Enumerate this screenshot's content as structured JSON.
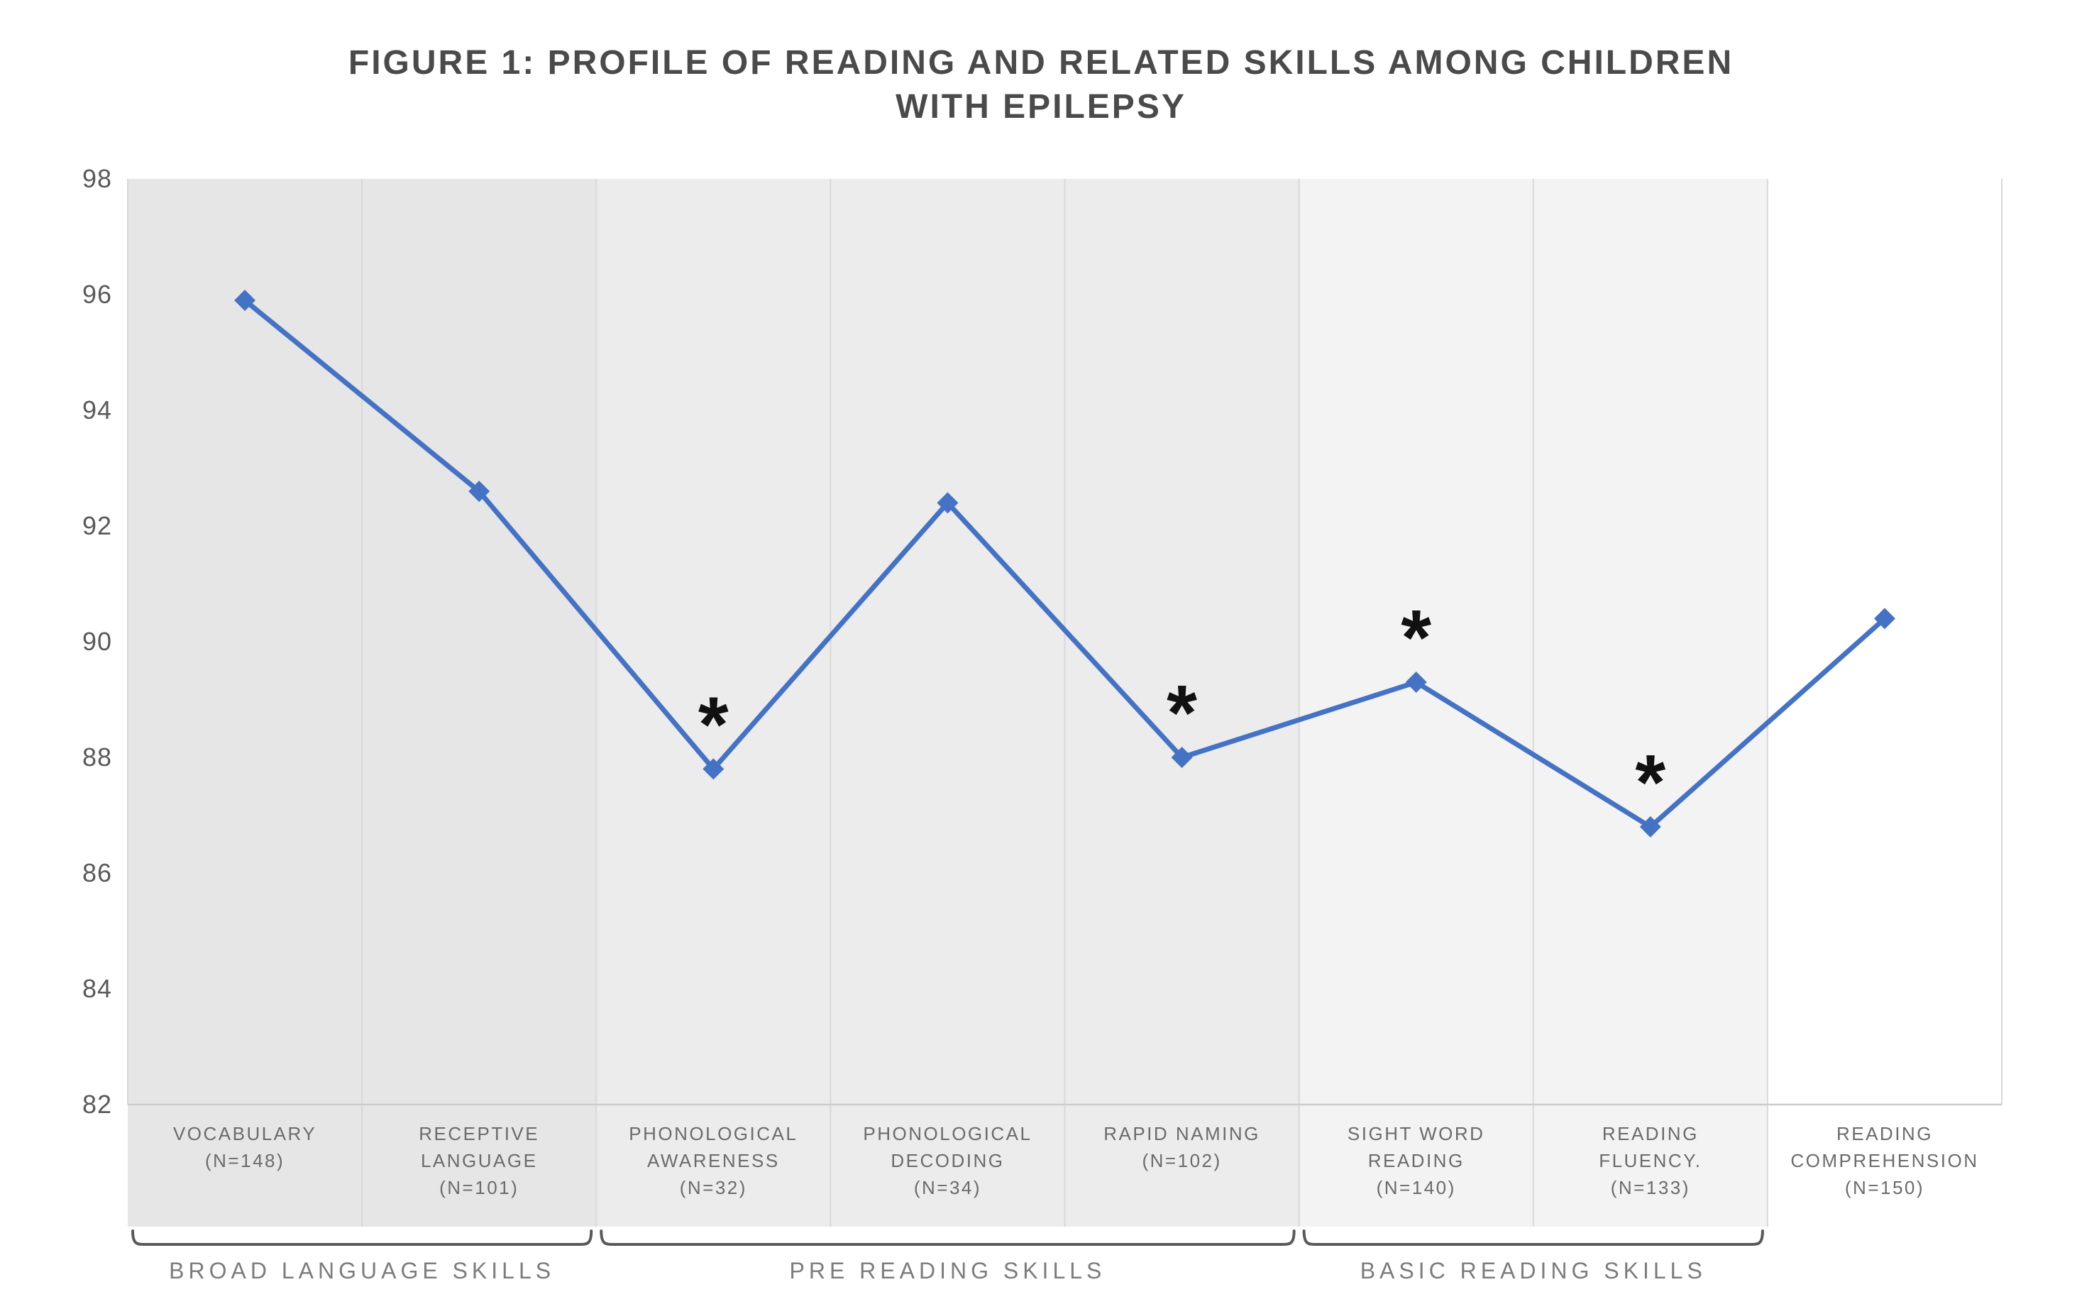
{
  "header": {
    "title_line1": "FIGURE 1: PROFILE OF READING AND RELATED SKILLS AMONG CHILDREN",
    "title_line2": "WITH EPILEPSY"
  },
  "chart_data": {
    "type": "line",
    "title": "FIGURE 1: PROFILE OF READING AND RELATED SKILLS AMONG CHILDREN WITH EPILEPSY",
    "ylabel": "",
    "xlabel": "",
    "y_axis": {
      "min": 82,
      "max": 98,
      "tick_step": 2,
      "ticks": [
        98,
        96,
        94,
        92,
        90,
        88,
        86,
        84,
        82
      ]
    },
    "grid": "vertical-column-separators-only",
    "legend": "none",
    "marker": "diamond",
    "significance_symbol": "*",
    "categories": [
      {
        "label": "VOCABULARY (N=148)",
        "label_lines": [
          "VOCABULARY",
          "(N=148)"
        ],
        "n": 148,
        "value": 95.9,
        "significant": false
      },
      {
        "label": "RECEPTIVE LANGUAGE (N=101)",
        "label_lines": [
          "RECEPTIVE",
          "LANGUAGE",
          "(N=101)"
        ],
        "n": 101,
        "value": 92.6,
        "significant": false
      },
      {
        "label": "PHONOLOGICAL AWARENESS (N=32)",
        "label_lines": [
          "PHONOLOGICAL",
          "AWARENESS",
          "(N=32)"
        ],
        "n": 32,
        "value": 87.8,
        "significant": true
      },
      {
        "label": "PHONOLOGICAL DECODING (N=34)",
        "label_lines": [
          "PHONOLOGICAL",
          "DECODING",
          "(N=34)"
        ],
        "n": 34,
        "value": 92.4,
        "significant": false
      },
      {
        "label": "RAPID NAMING (N=102)",
        "label_lines": [
          "RAPID NAMING",
          "(N=102)"
        ],
        "n": 102,
        "value": 88.0,
        "significant": true
      },
      {
        "label": "SIGHT WORD READING (N=140)",
        "label_lines": [
          "SIGHT WORD",
          "READING",
          "(N=140)"
        ],
        "n": 140,
        "value": 89.3,
        "significant": true
      },
      {
        "label": "READING FLUENCY. (N=133)",
        "label_lines": [
          "READING",
          "FLUENCY.",
          "(N=133)"
        ],
        "n": 133,
        "value": 86.8,
        "significant": true
      },
      {
        "label": "READING COMPREHENSION (N=150)",
        "label_lines": [
          "READING",
          "COMPREHENSION",
          "(N=150)"
        ],
        "n": 150,
        "value": 90.4,
        "significant": false
      }
    ],
    "bands": [
      {
        "start": 0,
        "end": 1,
        "shade": "#e7e6e6"
      },
      {
        "start": 2,
        "end": 4,
        "shade": "#ececec"
      },
      {
        "start": 5,
        "end": 6,
        "shade": "#f3f3f3"
      },
      {
        "start": 7,
        "end": 7,
        "shade": "#ffffff"
      }
    ],
    "groups": [
      {
        "label": "BROAD LANGUAGE SKILLS",
        "start": 0,
        "end": 1
      },
      {
        "label": "PRE READING SKILLS",
        "start": 2,
        "end": 4
      },
      {
        "label": "BASIC READING SKILLS",
        "start": 5,
        "end": 6
      }
    ],
    "colors": {
      "line": "#4472C4",
      "marker": "#4472C4",
      "asterisk": "#111111",
      "title_text": "#4a4a4a",
      "tick_text": "#595959",
      "category_text": "#6b6b6b",
      "group_text": "#7c7c7c",
      "bracket": "#595959",
      "separator": "#d9d9d9",
      "axis_line": "#cccccc"
    }
  }
}
